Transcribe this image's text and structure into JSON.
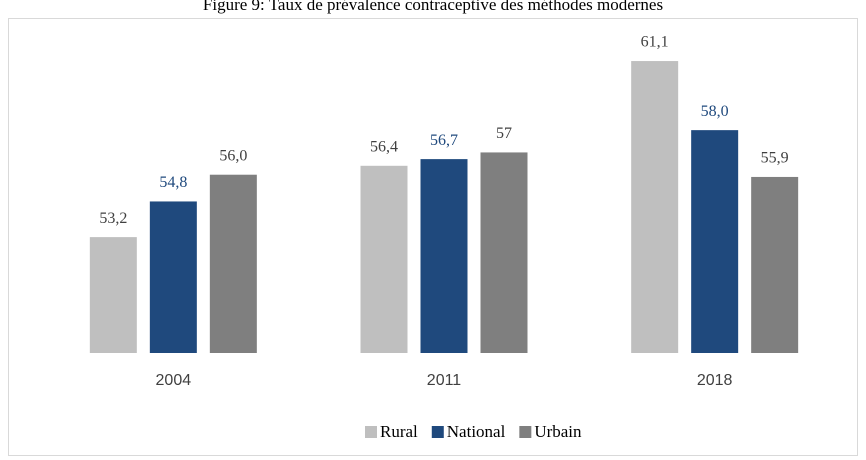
{
  "chart_data": {
    "type": "bar",
    "title": "Figure 9: Taux de prévalence contraceptive des méthodes modernes",
    "categories": [
      "2004",
      "2011",
      "2018"
    ],
    "series": [
      {
        "name": "Rural",
        "color": "#bfbfbf",
        "label_color": "#404040",
        "values": [
          53.2,
          56.4,
          61.1
        ],
        "value_labels": [
          "53,2",
          "56,4",
          "61,1"
        ]
      },
      {
        "name": "National",
        "color": "#1f497d",
        "label_color": "#1f497d",
        "values": [
          54.8,
          56.7,
          58.0
        ],
        "value_labels": [
          "54,8",
          "56,7",
          "58,0"
        ]
      },
      {
        "name": "Urbain",
        "color": "#7f7f7f",
        "label_color": "#404040",
        "values": [
          56.0,
          57,
          55.9
        ],
        "value_labels": [
          "56,0",
          "57",
          "55,9"
        ]
      }
    ],
    "ylim": [
      48,
      62
    ],
    "legend": "bottom"
  }
}
